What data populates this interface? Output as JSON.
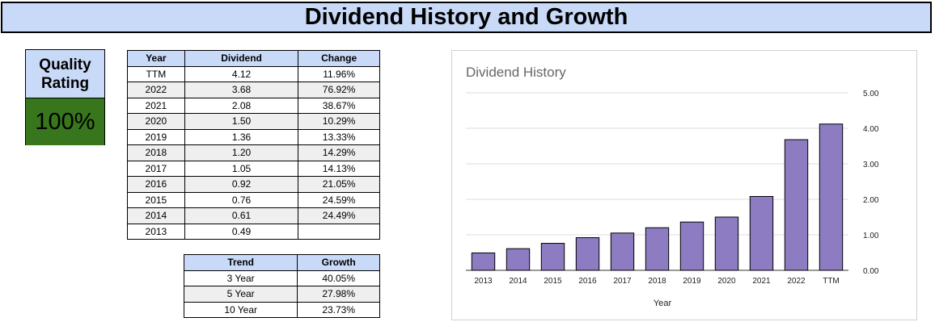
{
  "page_title": "Dividend History and Growth",
  "quality": {
    "label": "Quality\nRating",
    "value": "100%",
    "color": "#38761d"
  },
  "dividend_table": {
    "headers": [
      "Year",
      "Dividend",
      "Change"
    ],
    "rows": [
      [
        "TTM",
        "4.12",
        "11.96%"
      ],
      [
        "2022",
        "3.68",
        "76.92%"
      ],
      [
        "2021",
        "2.08",
        "38.67%"
      ],
      [
        "2020",
        "1.50",
        "10.29%"
      ],
      [
        "2019",
        "1.36",
        "13.33%"
      ],
      [
        "2018",
        "1.20",
        "14.29%"
      ],
      [
        "2017",
        "1.05",
        "14.13%"
      ],
      [
        "2016",
        "0.92",
        "21.05%"
      ],
      [
        "2015",
        "0.76",
        "24.59%"
      ],
      [
        "2014",
        "0.61",
        "24.49%"
      ],
      [
        "2013",
        "0.49",
        ""
      ]
    ]
  },
  "growth_table": {
    "headers": [
      "Trend",
      "Growth"
    ],
    "rows": [
      [
        "3 Year",
        "40.05%"
      ],
      [
        "5 Year",
        "27.98%"
      ],
      [
        "10 Year",
        "23.73%"
      ]
    ]
  },
  "colors": {
    "header_fill": "#c9daf8",
    "alt_row": "#efefef",
    "bar_fill": "#8e7cc3"
  },
  "chart_data": {
    "type": "bar",
    "title": "Dividend History",
    "xlabel": "Year",
    "ylabel": "",
    "categories": [
      "2013",
      "2014",
      "2015",
      "2016",
      "2017",
      "2018",
      "2019",
      "2020",
      "2021",
      "2022",
      "TTM"
    ],
    "values": [
      0.49,
      0.61,
      0.76,
      0.92,
      1.05,
      1.2,
      1.36,
      1.5,
      2.08,
      3.68,
      4.12
    ],
    "ylim": [
      0,
      5
    ],
    "yticks": [
      "0.00",
      "1.00",
      "2.00",
      "3.00",
      "4.00",
      "5.00"
    ],
    "y_axis_side": "right",
    "grid": true,
    "legend": "none"
  }
}
